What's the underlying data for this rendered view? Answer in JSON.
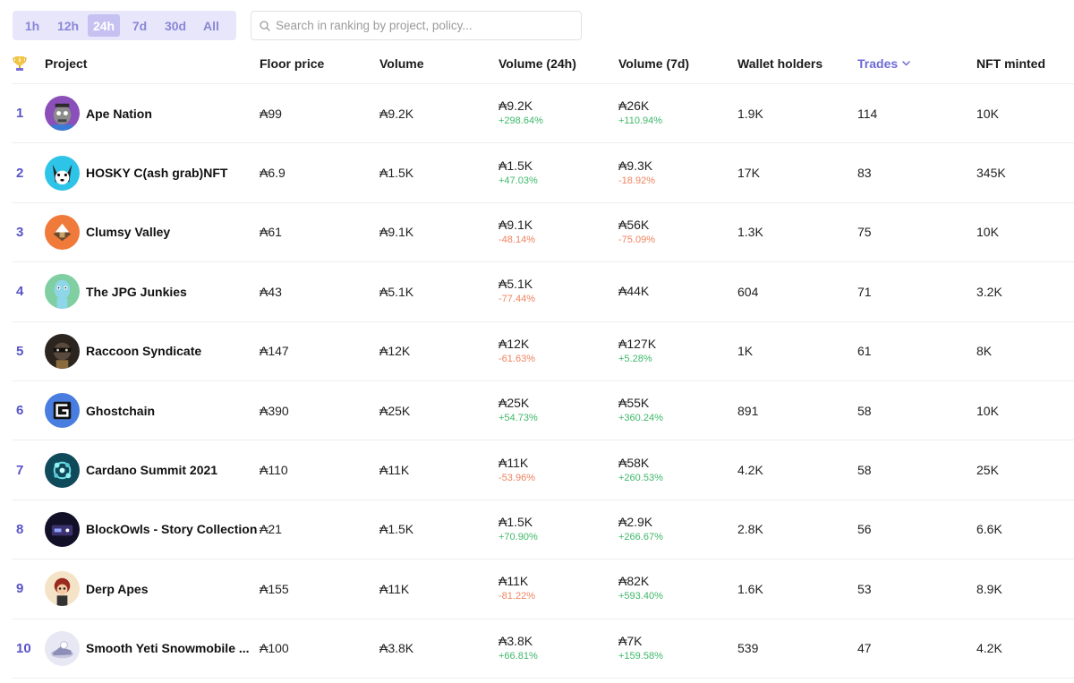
{
  "time_tabs": [
    {
      "label": "1h",
      "active": false
    },
    {
      "label": "12h",
      "active": false
    },
    {
      "label": "24h",
      "active": true
    },
    {
      "label": "7d",
      "active": false
    },
    {
      "label": "30d",
      "active": false
    },
    {
      "label": "All",
      "active": false
    }
  ],
  "search": {
    "placeholder": "Search in ranking by project, policy..."
  },
  "headers": {
    "project": "Project",
    "floor": "Floor price",
    "volume": "Volume",
    "vol24": "Volume (24h)",
    "vol7": "Volume (7d)",
    "wallets": "Wallet holders",
    "trades": "Trades",
    "minted": "NFT minted"
  },
  "icons": {
    "trophy": "trophy-icon",
    "sort": "chevron-down-icon",
    "search": "search-icon"
  },
  "colors": {
    "accent": "#5954c9",
    "positive": "#3fb86a",
    "negative": "#ef8461"
  },
  "rows": [
    {
      "rank": "1",
      "name": "Ape Nation",
      "floor": "₳99",
      "volume": "₳9.2K",
      "vol24": "₳9.2K",
      "vol24_delta": "+298.64%",
      "vol7": "₳26K",
      "vol7_delta": "+110.94%",
      "wallets": "1.9K",
      "trades": "114",
      "minted": "10K"
    },
    {
      "rank": "2",
      "name": "HOSKY C(ash grab)NFT",
      "floor": "₳6.9",
      "volume": "₳1.5K",
      "vol24": "₳1.5K",
      "vol24_delta": "+47.03%",
      "vol7": "₳9.3K",
      "vol7_delta": "-18.92%",
      "wallets": "17K",
      "trades": "83",
      "minted": "345K"
    },
    {
      "rank": "3",
      "name": "Clumsy Valley",
      "floor": "₳61",
      "volume": "₳9.1K",
      "vol24": "₳9.1K",
      "vol24_delta": "-48.14%",
      "vol7": "₳56K",
      "vol7_delta": "-75.09%",
      "wallets": "1.3K",
      "trades": "75",
      "minted": "10K"
    },
    {
      "rank": "4",
      "name": "The JPG Junkies",
      "floor": "₳43",
      "volume": "₳5.1K",
      "vol24": "₳5.1K",
      "vol24_delta": "-77.44%",
      "vol7": "₳44K",
      "vol7_delta": "",
      "wallets": "604",
      "trades": "71",
      "minted": "3.2K"
    },
    {
      "rank": "5",
      "name": "Raccoon Syndicate",
      "floor": "₳147",
      "volume": "₳12K",
      "vol24": "₳12K",
      "vol24_delta": "-61.63%",
      "vol7": "₳127K",
      "vol7_delta": "+5.28%",
      "wallets": "1K",
      "trades": "61",
      "minted": "8K"
    },
    {
      "rank": "6",
      "name": "Ghostchain",
      "floor": "₳390",
      "volume": "₳25K",
      "vol24": "₳25K",
      "vol24_delta": "+54.73%",
      "vol7": "₳55K",
      "vol7_delta": "+360.24%",
      "wallets": "891",
      "trades": "58",
      "minted": "10K"
    },
    {
      "rank": "7",
      "name": "Cardano Summit 2021",
      "floor": "₳110",
      "volume": "₳11K",
      "vol24": "₳11K",
      "vol24_delta": "-53.96%",
      "vol7": "₳58K",
      "vol7_delta": "+260.53%",
      "wallets": "4.2K",
      "trades": "58",
      "minted": "25K"
    },
    {
      "rank": "8",
      "name": "BlockOwls - Story Collection",
      "floor": "₳21",
      "volume": "₳1.5K",
      "vol24": "₳1.5K",
      "vol24_delta": "+70.90%",
      "vol7": "₳2.9K",
      "vol7_delta": "+266.67%",
      "wallets": "2.8K",
      "trades": "56",
      "minted": "6.6K"
    },
    {
      "rank": "9",
      "name": "Derp Apes",
      "floor": "₳155",
      "volume": "₳11K",
      "vol24": "₳11K",
      "vol24_delta": "-81.22%",
      "vol7": "₳82K",
      "vol7_delta": "+593.40%",
      "wallets": "1.6K",
      "trades": "53",
      "minted": "8.9K"
    },
    {
      "rank": "10",
      "name": "Smooth Yeti Snowmobile ...",
      "floor": "₳100",
      "volume": "₳3.8K",
      "vol24": "₳3.8K",
      "vol24_delta": "+66.81%",
      "vol7": "₳7K",
      "vol7_delta": "+159.58%",
      "wallets": "539",
      "trades": "47",
      "minted": "4.2K"
    }
  ]
}
